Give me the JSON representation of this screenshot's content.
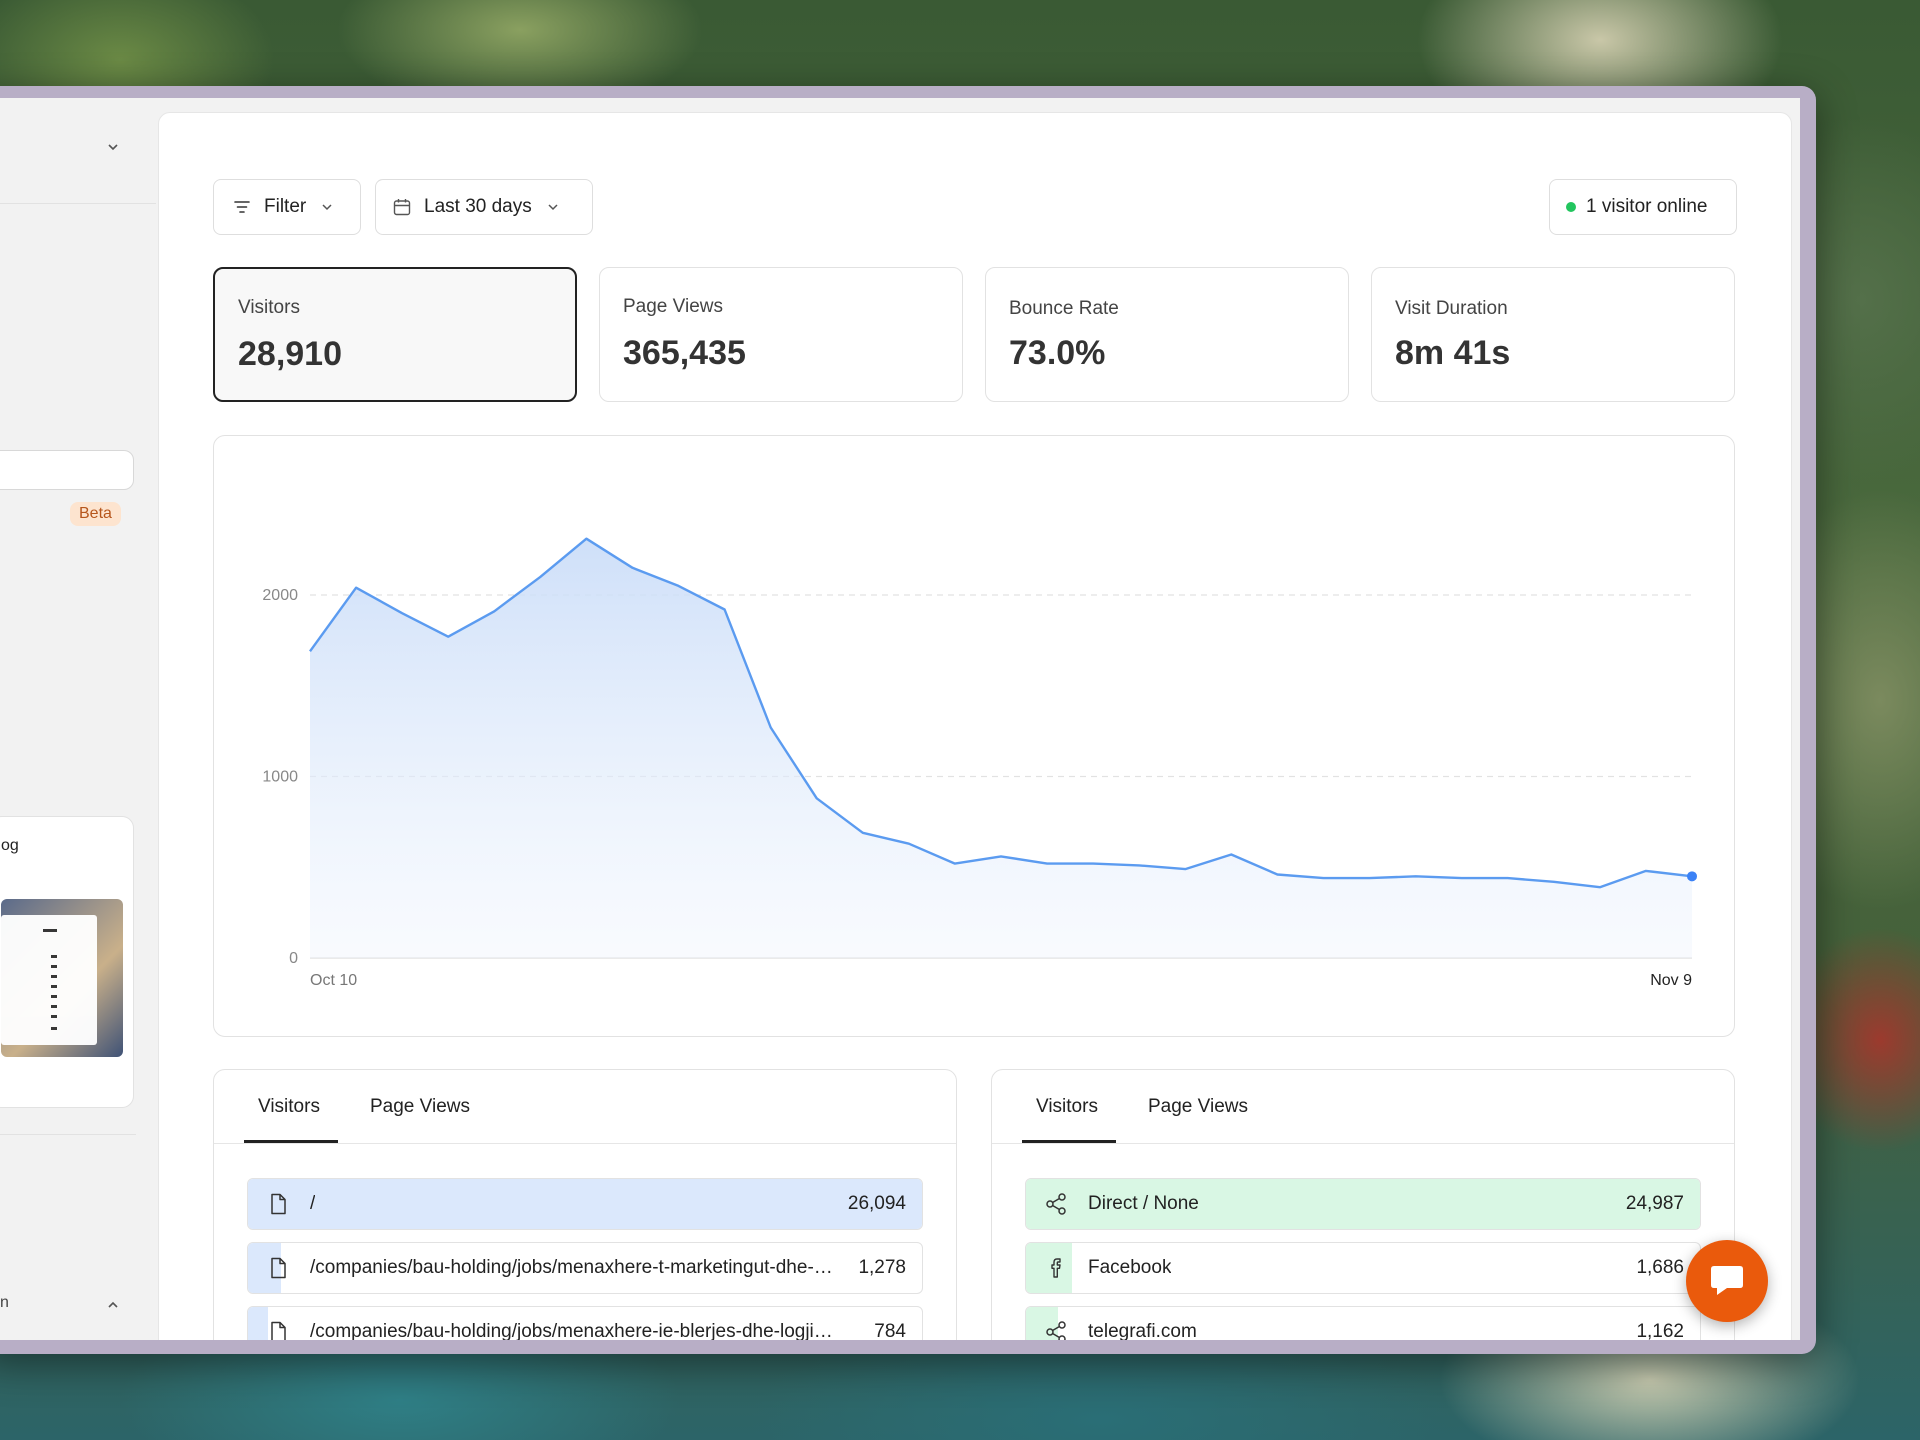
{
  "sidebar": {
    "beta_badge": "Beta",
    "card_label": "og",
    "bottom_text": "n"
  },
  "toolbar": {
    "filter_label": "Filter",
    "date_range_label": "Last 30 days",
    "online_label": "1 visitor online"
  },
  "stats": [
    {
      "label": "Visitors",
      "value": "28,910",
      "active": true
    },
    {
      "label": "Page Views",
      "value": "365,435",
      "active": false
    },
    {
      "label": "Bounce Rate",
      "value": "73.0%",
      "active": false
    },
    {
      "label": "Visit Duration",
      "value": "8m 41s",
      "active": false
    }
  ],
  "chart_data": {
    "type": "area",
    "title": "",
    "xlabel": "",
    "ylabel": "",
    "x_start_label": "Oct 10",
    "x_end_label": "Nov 9",
    "yticks": [
      0,
      1000,
      2000
    ],
    "ylim": [
      0,
      2300
    ],
    "grid": true,
    "line_color": "#5b9bf0",
    "series": [
      {
        "values": [
          1690,
          2040,
          1900,
          1770,
          1910,
          2100,
          2310,
          2150,
          2050,
          1920,
          1270,
          880,
          690,
          630,
          520,
          560,
          520,
          520,
          510,
          490,
          570,
          460,
          440,
          440,
          450,
          440,
          440,
          420,
          390,
          480,
          450
        ]
      }
    ]
  },
  "pages_panel": {
    "tabs": [
      "Visitors",
      "Page Views"
    ],
    "active_tab": "Visitors",
    "rows": [
      {
        "label": "/",
        "value": "26,094",
        "fraction": 1.0
      },
      {
        "label": "/companies/bau-holding/jobs/menaxhere-t-marketingut-dhe-shitjeve",
        "value": "1,278",
        "fraction": 0.049
      },
      {
        "label": "/companies/bau-holding/jobs/menaxhere-ie-blerjes-dhe-logjistikes",
        "value": "784",
        "fraction": 0.03
      }
    ]
  },
  "sources_panel": {
    "tabs": [
      "Visitors",
      "Page Views"
    ],
    "active_tab": "Visitors",
    "rows": [
      {
        "label": "Direct / None",
        "value": "24,987",
        "fraction": 1.0,
        "icon": "share-icon"
      },
      {
        "label": "Facebook",
        "value": "1,686",
        "fraction": 0.067,
        "icon": "facebook-icon"
      },
      {
        "label": "telegrafi.com",
        "value": "1,162",
        "fraction": 0.046,
        "icon": "share-icon"
      }
    ]
  },
  "colors": {
    "page_bar": "#dbe8fc",
    "source_bar": "#d9f7e4",
    "online_dot": "#22c55e",
    "chat_button": "#ea5a0c"
  }
}
